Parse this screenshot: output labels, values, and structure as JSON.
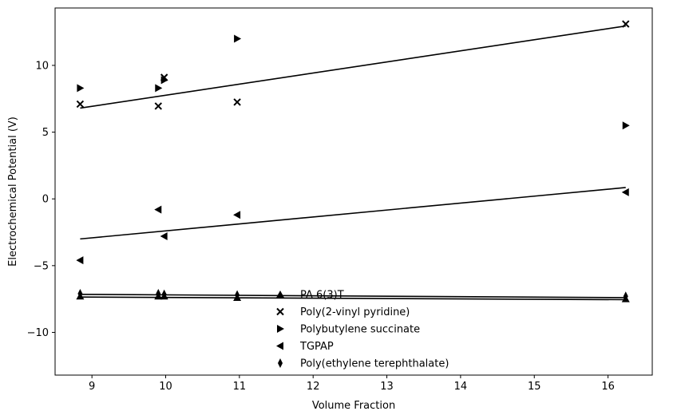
{
  "chart_data": {
    "type": "scatter",
    "xlabel": "Volume Fraction",
    "ylabel": "Electrochemical Potential (V)",
    "xlim": [
      8.5,
      16.6
    ],
    "ylim": [
      -13.2,
      14.3
    ],
    "xticks": [
      9,
      10,
      11,
      12,
      13,
      14,
      15,
      16
    ],
    "yticks": [
      -10,
      -5,
      0,
      5,
      10
    ],
    "ytick_labels": [
      "−10",
      "−5",
      "0",
      "5",
      "10"
    ],
    "grid": false,
    "legend_position": "lower-center",
    "series": [
      {
        "name": "PA 6(3)T",
        "marker": "triangle-up",
        "x": [
          8.84,
          9.9,
          9.98,
          10.97,
          16.24
        ],
        "y": [
          -7.3,
          -7.3,
          -7.3,
          -7.4,
          -7.5
        ],
        "fit": [
          [
            8.84,
            -7.35
          ],
          [
            16.24,
            -7.55
          ]
        ]
      },
      {
        "name": "Poly(2-vinyl pyridine)",
        "marker": "x",
        "x": [
          8.84,
          9.9,
          9.98,
          10.97,
          16.24
        ],
        "y": [
          7.1,
          6.95,
          9.1,
          7.25,
          13.1
        ],
        "fit": [
          [
            8.84,
            6.8
          ],
          [
            16.24,
            12.95
          ]
        ]
      },
      {
        "name": "Polybutylene succinate",
        "marker": "triangle-right",
        "x": [
          8.84,
          9.9,
          9.98,
          10.97,
          16.24
        ],
        "y": [
          8.3,
          8.3,
          8.9,
          12.0,
          5.5
        ],
        "fit": null
      },
      {
        "name": "TGPAP",
        "marker": "triangle-left",
        "x": [
          8.84,
          9.9,
          9.98,
          10.97,
          16.24
        ],
        "y": [
          -4.6,
          -0.8,
          -2.8,
          -1.2,
          0.5
        ],
        "fit": [
          [
            8.84,
            -3.0
          ],
          [
            16.24,
            0.85
          ]
        ]
      },
      {
        "name": "Poly(ethylene terephthalate)",
        "marker": "thin-diamond",
        "x": [
          8.84,
          9.9,
          9.98,
          10.97,
          16.24
        ],
        "y": [
          -7.1,
          -7.1,
          -7.15,
          -7.2,
          -7.3
        ],
        "fit": [
          [
            8.84,
            -7.15
          ],
          [
            16.24,
            -7.4
          ]
        ]
      }
    ]
  }
}
